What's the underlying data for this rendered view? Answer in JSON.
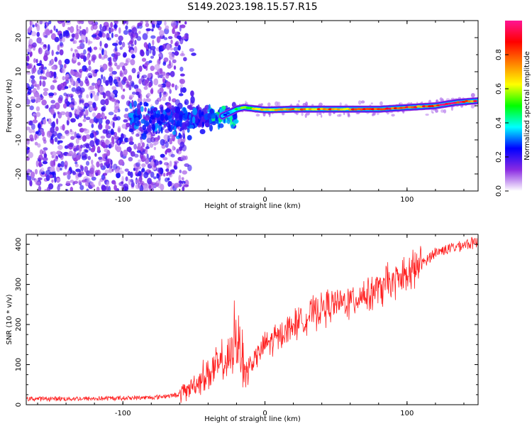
{
  "title": "S149.2023.198.15.57.R15",
  "chart_data": [
    {
      "type": "heatmap",
      "xlabel": "Height of straight line (km)",
      "ylabel": "Frequency (Hz)",
      "xlim": [
        -168,
        150
      ],
      "ylim": [
        -25,
        25
      ],
      "xticks": [
        -100,
        0,
        100
      ],
      "yticks": [
        -20,
        -10,
        0,
        10,
        20
      ],
      "colorbar": {
        "label": "Normalized spectral amplitude",
        "range": [
          0,
          1
        ],
        "ticks": [
          0.0,
          0.2,
          0.4,
          0.6,
          0.8
        ],
        "colormap": [
          "#ffffff",
          "#8a2be2",
          "#0000ff",
          "#00ffff",
          "#00ff00",
          "#ffff00",
          "#ff8000",
          "#ff0000",
          "#ff1493"
        ]
      },
      "ridge": {
        "x": [
          -30,
          -25,
          -20,
          -15,
          0,
          20,
          40,
          60,
          80,
          100,
          120,
          135,
          150
        ],
        "freq": [
          -3,
          -2,
          -1,
          -0.5,
          -1.2,
          -1,
          -1,
          -1,
          -1,
          -0.5,
          0,
          1,
          1.5
        ],
        "amplitude": [
          0.3,
          0.35,
          0.5,
          0.6,
          0.7,
          0.8,
          0.85,
          0.85,
          0.9,
          0.9,
          0.95,
          0.95,
          0.9
        ]
      }
    },
    {
      "type": "line",
      "xlabel": "Height of straight line (km)",
      "ylabel": "SNR (10 * v/v)",
      "xlim": [
        -168,
        150
      ],
      "ylim": [
        0,
        425
      ],
      "xticks": [
        -100,
        0,
        100
      ],
      "yticks": [
        0,
        100,
        200,
        300,
        400
      ],
      "color": "#ff2020",
      "trend": {
        "x": [
          -168,
          -120,
          -80,
          -60,
          -50,
          -40,
          -30,
          -25,
          -20,
          -15,
          -10,
          0,
          10,
          20,
          30,
          40,
          60,
          80,
          100,
          110,
          120,
          140,
          150
        ],
        "y": [
          15,
          15,
          18,
          25,
          50,
          80,
          100,
          110,
          150,
          70,
          100,
          150,
          170,
          200,
          220,
          240,
          260,
          290,
          320,
          350,
          380,
          400,
          405
        ]
      }
    }
  ]
}
